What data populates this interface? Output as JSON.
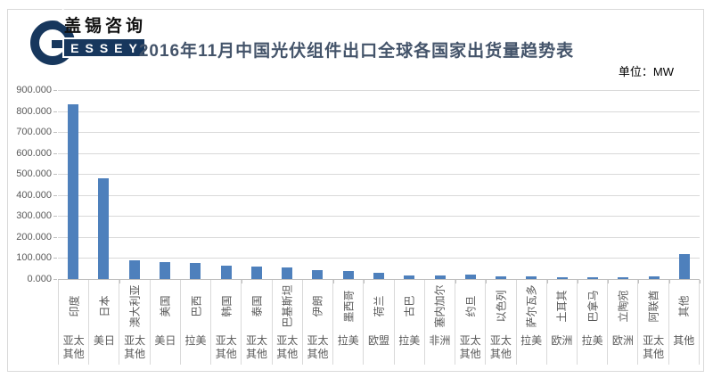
{
  "page": {
    "title": "2016年11月中国光伏组件出口全球各国家出货量趋势表",
    "unit_label": "单位：MW",
    "logo": {
      "name_cn": "盖锡咨询",
      "name_en": "ESSEY"
    }
  },
  "colors": {
    "bar": "#4e80bc",
    "gridline": "#d9d9d9",
    "axis": "#bfbfbf",
    "title_text": "#44546a",
    "label_text": "#595959",
    "logo_navy": "#17375d"
  },
  "chart_data": {
    "type": "bar",
    "title": "2016年11月中国光伏组件出口全球各国家出货量趋势表",
    "unit": "MW",
    "categories": [
      "印度",
      "日本",
      "澳大利亚",
      "美国",
      "巴西",
      "韩国",
      "泰国",
      "巴基斯坦",
      "伊朗",
      "墨西哥",
      "荷兰",
      "古巴",
      "塞内加尔",
      "约旦",
      "以色列",
      "萨尔瓦多",
      "土耳其",
      "巴拿马",
      "立陶宛",
      "阿联酋",
      "其他"
    ],
    "group_labels": [
      "亚太其他",
      "美日",
      "亚太其他",
      "美日",
      "拉美",
      "亚太其他",
      "亚太其他",
      "亚太其他",
      "亚太其他",
      "拉美",
      "欧盟",
      "拉美",
      "非洲",
      "亚太其他",
      "亚太其他",
      "拉美",
      "欧洲",
      "拉美",
      "欧洲",
      "亚太其他",
      "其他"
    ],
    "values": [
      833,
      478,
      88,
      79,
      76,
      64,
      58,
      57,
      41,
      37,
      29,
      18,
      17,
      21,
      13,
      14,
      10,
      10,
      9,
      13,
      120
    ],
    "xlabel": "",
    "ylabel": "",
    "ylim": [
      0,
      900
    ],
    "yticks": [
      "900.000",
      "800.000",
      "700.000",
      "600.000",
      "500.000",
      "400.000",
      "300.000",
      "200.000",
      "100.000",
      "0.000"
    ],
    "grid": true,
    "legend": false,
    "bar_color": "#4e80bc"
  }
}
